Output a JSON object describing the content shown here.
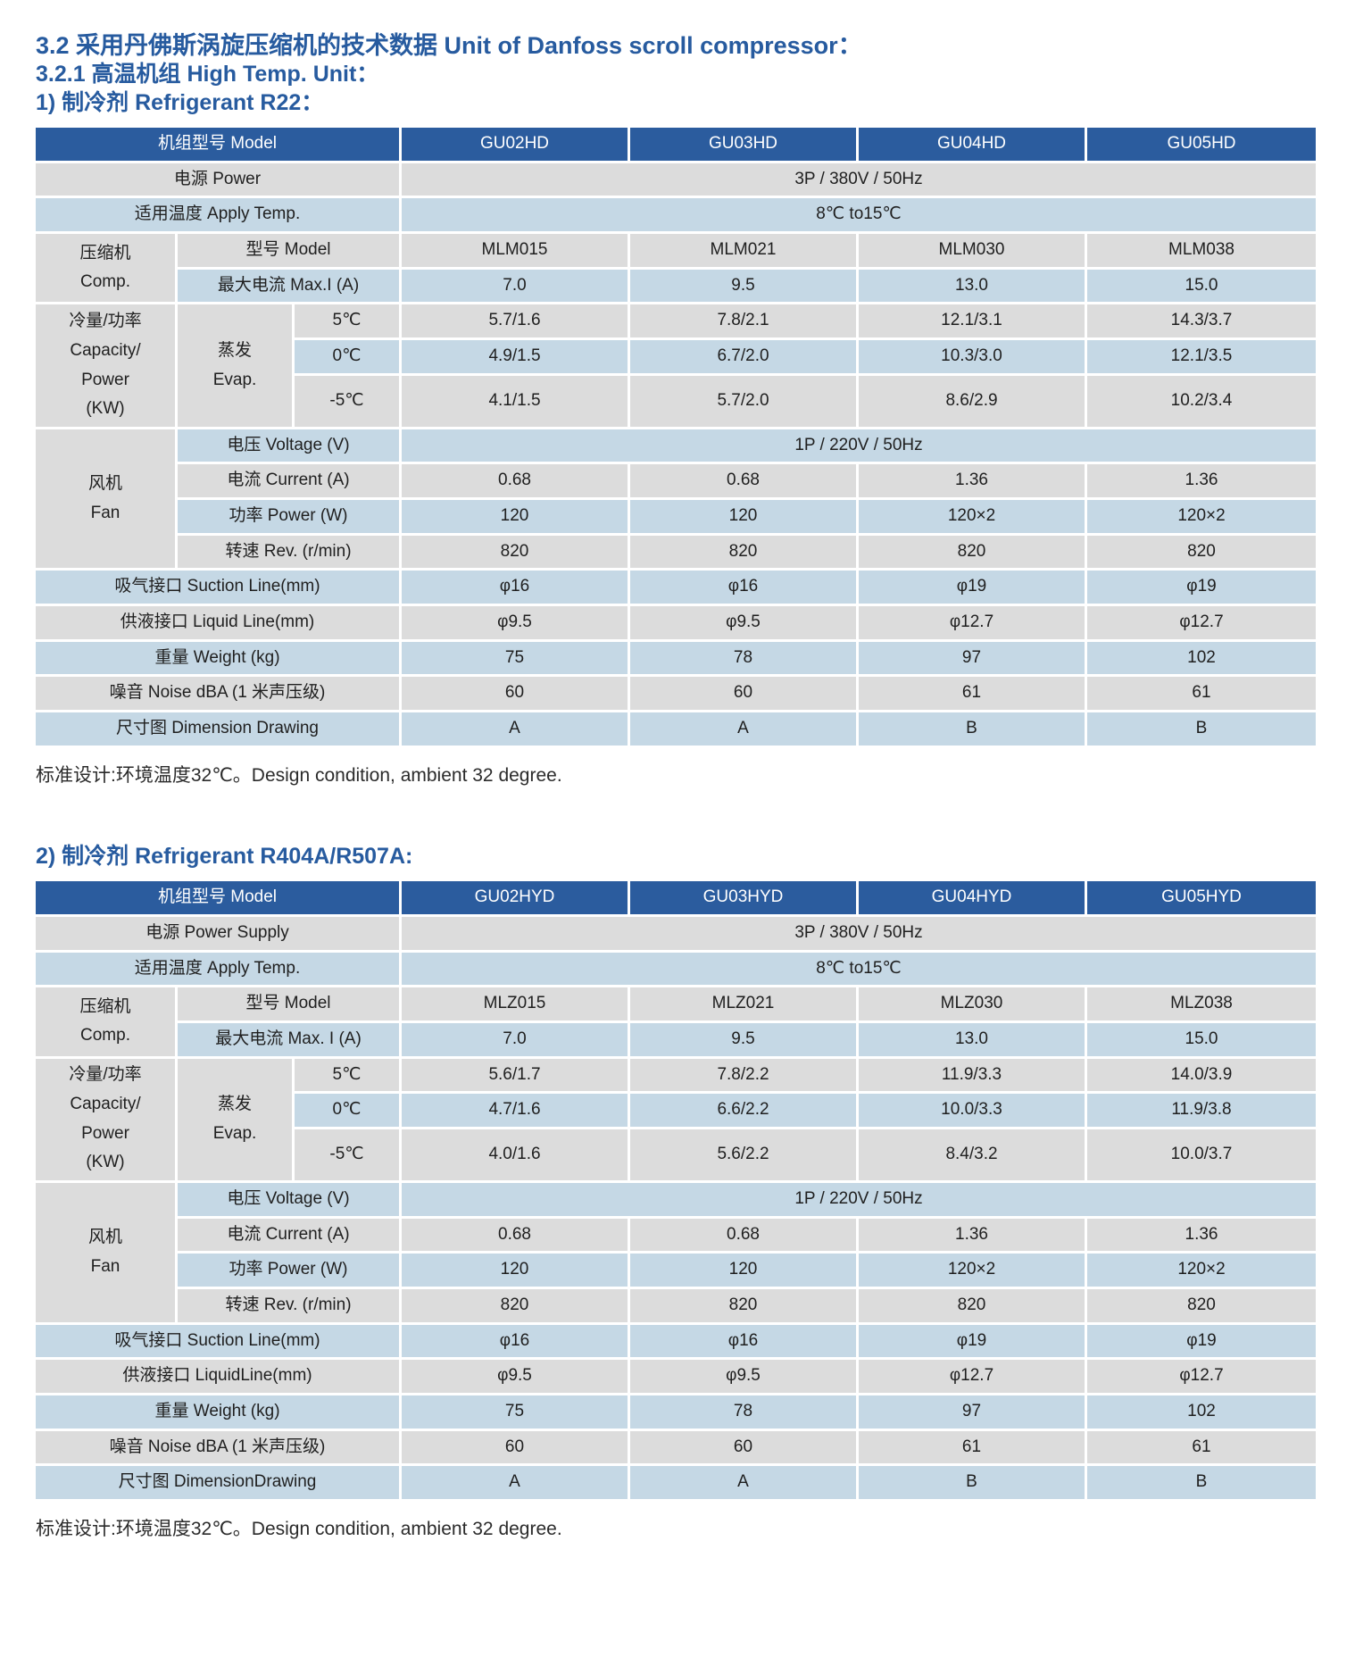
{
  "page": {
    "headings": {
      "line1": "3.2 采用丹佛斯涡旋压缩机的技术数据 Unit of Danfoss scroll compressor：",
      "line2": "3.2.1 高温机组 High Temp. Unit：",
      "line3": "1) 制冷剂 Refrigerant R22：",
      "section2": "2) 制冷剂 Refrigerant R404A/R507A:"
    },
    "note1": "标准设计:环境温度32℃。Design condition, ambient 32 degree.",
    "note2": "标准设计:环境温度32℃。Design condition, ambient 32 degree."
  },
  "colors": {
    "header_blue": "#2b5c9e",
    "row_blue": "#c5d8e5",
    "row_gray": "#dcdcdc",
    "heading_text": "#275b9f"
  },
  "tables": [
    {
      "id": "r22",
      "header": {
        "cells": [
          {
            "t": "机组型号 Model",
            "cs": 3,
            "name": "model-header-cell"
          },
          {
            "t": "GU02HD"
          },
          {
            "t": "GU03HD"
          },
          {
            "t": "GU04HD"
          },
          {
            "t": "GU05HD"
          }
        ]
      },
      "body": [
        {
          "bg": "gray",
          "cells": [
            {
              "t": "电源 Power",
              "cs": 3,
              "name": "power-label"
            },
            {
              "t": "3P / 380V / 50Hz",
              "cs": 4
            }
          ]
        },
        {
          "bg": "blue",
          "cells": [
            {
              "t": "适用温度 Apply Temp.",
              "cs": 3,
              "name": "apply-temp-label"
            },
            {
              "t": "8℃ to15℃",
              "cs": 4
            }
          ]
        },
        {
          "bg": "gray",
          "cells": [
            {
              "t": "压缩机\nComp.",
              "rs": 2,
              "bg": "gray",
              "name": "compressor-group-label"
            },
            {
              "t": "型号 Model",
              "cs": 2
            },
            {
              "t": "MLM015"
            },
            {
              "t": "MLM021"
            },
            {
              "t": "MLM030"
            },
            {
              "t": "MLM038"
            }
          ]
        },
        {
          "bg": "blue",
          "cells": [
            {
              "t": "最大电流 Max.I (A)",
              "cs": 2
            },
            {
              "t": "7.0"
            },
            {
              "t": "9.5"
            },
            {
              "t": "13.0"
            },
            {
              "t": "15.0"
            }
          ]
        },
        {
          "bg": "gray",
          "cells": [
            {
              "t": "冷量/功率\nCapacity/\nPower\n(KW)",
              "rs": 3,
              "bg": "gray",
              "name": "capacity-group-label"
            },
            {
              "t": "蒸发\nEvap.",
              "rs": 3,
              "bg": "gray",
              "name": "evap-group-label"
            },
            {
              "t": "5℃"
            },
            {
              "t": "5.7/1.6"
            },
            {
              "t": "7.8/2.1"
            },
            {
              "t": "12.1/3.1"
            },
            {
              "t": "14.3/3.7"
            }
          ]
        },
        {
          "bg": "blue",
          "cells": [
            {
              "t": "0℃"
            },
            {
              "t": "4.9/1.5"
            },
            {
              "t": "6.7/2.0"
            },
            {
              "t": "10.3/3.0"
            },
            {
              "t": "12.1/3.5"
            }
          ]
        },
        {
          "bg": "gray",
          "h": 60,
          "cells": [
            {
              "t": "-5℃"
            },
            {
              "t": "4.1/1.5"
            },
            {
              "t": "5.7/2.0"
            },
            {
              "t": "8.6/2.9"
            },
            {
              "t": "10.2/3.4"
            }
          ]
        },
        {
          "bg": "blue",
          "cells": [
            {
              "t": "风机\nFan",
              "rs": 4,
              "bg": "gray",
              "name": "fan-group-label"
            },
            {
              "t": "电压 Voltage (V)",
              "cs": 2
            },
            {
              "t": "1P / 220V / 50Hz",
              "cs": 4
            }
          ]
        },
        {
          "bg": "gray",
          "cells": [
            {
              "t": "电流 Current (A)",
              "cs": 2
            },
            {
              "t": "0.68"
            },
            {
              "t": "0.68"
            },
            {
              "t": "1.36"
            },
            {
              "t": "1.36"
            }
          ]
        },
        {
          "bg": "blue",
          "cells": [
            {
              "t": "功率 Power (W)",
              "cs": 2
            },
            {
              "t": "120"
            },
            {
              "t": "120"
            },
            {
              "t": "120×2"
            },
            {
              "t": "120×2"
            }
          ]
        },
        {
          "bg": "gray",
          "cells": [
            {
              "t": "转速 Rev.  (r/min)",
              "cs": 2
            },
            {
              "t": "820"
            },
            {
              "t": "820"
            },
            {
              "t": "820"
            },
            {
              "t": "820"
            }
          ]
        },
        {
          "bg": "blue",
          "cells": [
            {
              "t": "吸气接口 Suction Line(mm)",
              "cs": 3,
              "name": "suction-line-label"
            },
            {
              "t": "φ16"
            },
            {
              "t": "φ16"
            },
            {
              "t": "φ19"
            },
            {
              "t": "φ19"
            }
          ]
        },
        {
          "bg": "gray",
          "cells": [
            {
              "t": "供液接口 Liquid Line(mm)",
              "cs": 3,
              "name": "liquid-line-label"
            },
            {
              "t": "φ9.5"
            },
            {
              "t": "φ9.5"
            },
            {
              "t": "φ12.7"
            },
            {
              "t": "φ12.7"
            }
          ]
        },
        {
          "bg": "blue",
          "cells": [
            {
              "t": "重量 Weight (kg)",
              "cs": 3,
              "name": "weight-label"
            },
            {
              "t": "75"
            },
            {
              "t": "78"
            },
            {
              "t": "97"
            },
            {
              "t": "102"
            }
          ]
        },
        {
          "bg": "gray",
          "cells": [
            {
              "t": "噪音 Noise dBA (1 米声压级)",
              "cs": 3,
              "name": "noise-label"
            },
            {
              "t": "60"
            },
            {
              "t": "60"
            },
            {
              "t": "61"
            },
            {
              "t": "61"
            }
          ]
        },
        {
          "bg": "blue",
          "cells": [
            {
              "t": "尺寸图 Dimension Drawing",
              "cs": 3,
              "name": "dimension-drawing-label"
            },
            {
              "t": "A"
            },
            {
              "t": "A"
            },
            {
              "t": "B"
            },
            {
              "t": "B"
            }
          ]
        }
      ]
    },
    {
      "id": "r404a-r507a",
      "header": {
        "cells": [
          {
            "t": "机组型号 Model",
            "cs": 3,
            "name": "model-header-cell"
          },
          {
            "t": "GU02HYD"
          },
          {
            "t": "GU03HYD"
          },
          {
            "t": "GU04HYD"
          },
          {
            "t": "GU05HYD"
          }
        ]
      },
      "body": [
        {
          "bg": "gray",
          "cells": [
            {
              "t": "电源 Power Supply",
              "cs": 3,
              "name": "power-label"
            },
            {
              "t": "3P / 380V / 50Hz",
              "cs": 4
            }
          ]
        },
        {
          "bg": "blue",
          "cells": [
            {
              "t": "适用温度 Apply Temp.",
              "cs": 3,
              "name": "apply-temp-label"
            },
            {
              "t": "8℃ to15℃",
              "cs": 4
            }
          ]
        },
        {
          "bg": "gray",
          "cells": [
            {
              "t": "压缩机\nComp.",
              "rs": 2,
              "bg": "gray",
              "name": "compressor-group-label"
            },
            {
              "t": "型号 Model",
              "cs": 2
            },
            {
              "t": "MLZ015"
            },
            {
              "t": "MLZ021"
            },
            {
              "t": "MLZ030"
            },
            {
              "t": "MLZ038"
            }
          ]
        },
        {
          "bg": "blue",
          "cells": [
            {
              "t": "最大电流 Max. I (A)",
              "cs": 2
            },
            {
              "t": "7.0"
            },
            {
              "t": "9.5"
            },
            {
              "t": "13.0"
            },
            {
              "t": "15.0"
            }
          ]
        },
        {
          "bg": "gray",
          "cells": [
            {
              "t": "冷量/功率\nCapacity/\nPower\n(KW)",
              "rs": 3,
              "bg": "gray",
              "name": "capacity-group-label"
            },
            {
              "t": "蒸发\nEvap.",
              "rs": 3,
              "bg": "gray",
              "name": "evap-group-label"
            },
            {
              "t": "5℃"
            },
            {
              "t": "5.6/1.7"
            },
            {
              "t": "7.8/2.2"
            },
            {
              "t": "11.9/3.3"
            },
            {
              "t": "14.0/3.9"
            }
          ]
        },
        {
          "bg": "blue",
          "cells": [
            {
              "t": "0℃"
            },
            {
              "t": "4.7/1.6"
            },
            {
              "t": "6.6/2.2"
            },
            {
              "t": "10.0/3.3"
            },
            {
              "t": "11.9/3.8"
            }
          ]
        },
        {
          "bg": "gray",
          "h": 60,
          "cells": [
            {
              "t": "-5℃"
            },
            {
              "t": "4.0/1.6"
            },
            {
              "t": "5.6/2.2"
            },
            {
              "t": "8.4/3.2"
            },
            {
              "t": "10.0/3.7"
            }
          ]
        },
        {
          "bg": "blue",
          "cells": [
            {
              "t": "风机\nFan",
              "rs": 4,
              "bg": "gray",
              "name": "fan-group-label"
            },
            {
              "t": "电压 Voltage (V)",
              "cs": 2
            },
            {
              "t": "1P / 220V / 50Hz",
              "cs": 4
            }
          ]
        },
        {
          "bg": "gray",
          "cells": [
            {
              "t": "电流 Current (A)",
              "cs": 2
            },
            {
              "t": "0.68"
            },
            {
              "t": "0.68"
            },
            {
              "t": "1.36"
            },
            {
              "t": "1.36"
            }
          ]
        },
        {
          "bg": "blue",
          "cells": [
            {
              "t": "功率 Power (W)",
              "cs": 2
            },
            {
              "t": "120"
            },
            {
              "t": "120"
            },
            {
              "t": "120×2"
            },
            {
              "t": "120×2"
            }
          ]
        },
        {
          "bg": "gray",
          "cells": [
            {
              "t": "转速 Rev.  (r/min)",
              "cs": 2
            },
            {
              "t": "820"
            },
            {
              "t": "820"
            },
            {
              "t": "820"
            },
            {
              "t": "820"
            }
          ]
        },
        {
          "bg": "blue",
          "cells": [
            {
              "t": "吸气接口 Suction Line(mm)",
              "cs": 3,
              "name": "suction-line-label"
            },
            {
              "t": "φ16"
            },
            {
              "t": "φ16"
            },
            {
              "t": "φ19"
            },
            {
              "t": "φ19"
            }
          ]
        },
        {
          "bg": "gray",
          "cells": [
            {
              "t": "供液接口 LiquidLine(mm)",
              "cs": 3,
              "name": "liquid-line-label"
            },
            {
              "t": "φ9.5"
            },
            {
              "t": "φ9.5"
            },
            {
              "t": "φ12.7"
            },
            {
              "t": "φ12.7"
            }
          ]
        },
        {
          "bg": "blue",
          "cells": [
            {
              "t": "重量 Weight (kg)",
              "cs": 3,
              "name": "weight-label"
            },
            {
              "t": "75"
            },
            {
              "t": "78"
            },
            {
              "t": "97"
            },
            {
              "t": "102"
            }
          ]
        },
        {
          "bg": "gray",
          "cells": [
            {
              "t": "噪音 Noise dBA (1 米声压级)",
              "cs": 3,
              "name": "noise-label"
            },
            {
              "t": "60"
            },
            {
              "t": "60"
            },
            {
              "t": "61"
            },
            {
              "t": "61"
            }
          ]
        },
        {
          "bg": "blue",
          "cells": [
            {
              "t": "尺寸图 DimensionDrawing",
              "cs": 3,
              "name": "dimension-drawing-label"
            },
            {
              "t": "A"
            },
            {
              "t": "A"
            },
            {
              "t": "B"
            },
            {
              "t": "B"
            }
          ]
        }
      ]
    }
  ]
}
